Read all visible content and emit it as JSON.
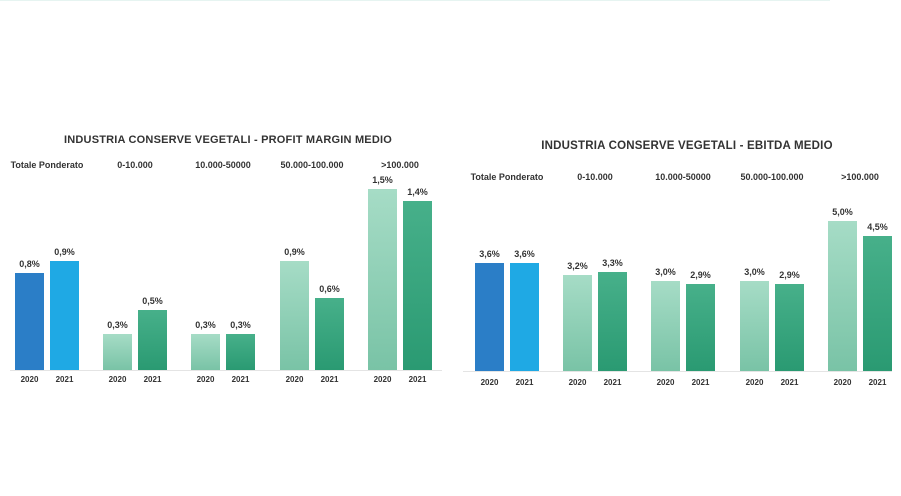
{
  "chart_data": [
    {
      "type": "bar",
      "title": "INDUSTRIA CONSERVE VEGETALI - PROFIT MARGIN MEDIO",
      "categories": [
        "Totale Ponderato",
        "0-10.000",
        "10.000-50000",
        "50.000-100.000",
        ">100.000"
      ],
      "series": [
        {
          "name": "2020",
          "values": [
            0.8,
            0.3,
            0.3,
            0.9,
            1.5
          ],
          "labels": [
            "0,8%",
            "0,3%",
            "0,3%",
            "0,9%",
            "1,5%"
          ]
        },
        {
          "name": "2021",
          "values": [
            0.9,
            0.5,
            0.3,
            0.6,
            1.4
          ],
          "labels": [
            "0,9%",
            "0,5%",
            "0,3%",
            "0,6%",
            "1,4%"
          ]
        }
      ],
      "year_labels": [
        "2020",
        "2021"
      ],
      "ylim": [
        0,
        1.5
      ],
      "xlabel": "",
      "ylabel": "",
      "grid": false
    },
    {
      "type": "bar",
      "title": "INDUSTRIA CONSERVE VEGETALI - EBITDA MEDIO",
      "categories": [
        "Totale Ponderato",
        "0-10.000",
        "10.000-50000",
        "50.000-100.000",
        ">100.000"
      ],
      "series": [
        {
          "name": "2020",
          "values": [
            3.6,
            3.2,
            3.0,
            3.0,
            5.0
          ],
          "labels": [
            "3,6%",
            "3,2%",
            "3,0%",
            "3,0%",
            "5,0%"
          ]
        },
        {
          "name": "2021",
          "values": [
            3.6,
            3.3,
            2.9,
            2.9,
            4.5
          ],
          "labels": [
            "3,6%",
            "3,3%",
            "2,9%",
            "2,9%",
            "4,5%"
          ]
        }
      ],
      "year_labels": [
        "2020",
        "2021"
      ],
      "ylim": [
        0,
        5.0
      ],
      "xlabel": "",
      "ylabel": "",
      "grid": false
    }
  ],
  "colors": {
    "total_2020": "#2b7ec7",
    "total_2021": "#1fa9e4",
    "green_2020_top": "#a6dcc6",
    "green_2020_bottom": "#79c3a6",
    "green_2021_top": "#47b08a",
    "green_2021_bottom": "#2a9a72"
  }
}
